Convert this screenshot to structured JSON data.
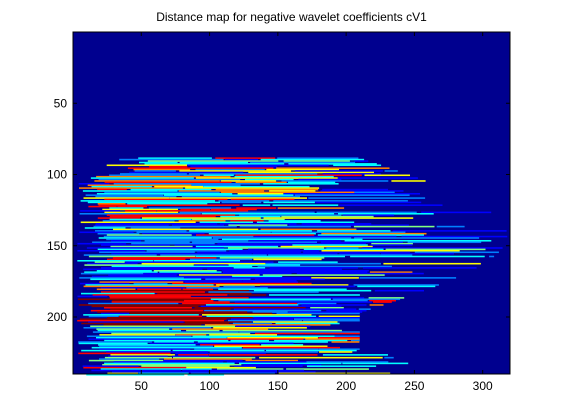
{
  "window": {
    "background": "#ffffff"
  },
  "chart_data": {
    "type": "heatmap",
    "title": "Distance map for negative wavelet coefficients cV1",
    "xlabel": "",
    "ylabel": "",
    "xlim": [
      0,
      320
    ],
    "ylim": [
      0,
      240
    ],
    "y_direction": "reversed",
    "x_ticks": [
      50,
      100,
      150,
      200,
      250,
      300
    ],
    "y_ticks": [
      50,
      100,
      150,
      200
    ],
    "grid": false,
    "colormap": "jet",
    "background_value_color": "#00008f",
    "colormap_stops": [
      "#00008f",
      "#0000ff",
      "#0080ff",
      "#00ffff",
      "#80ff80",
      "#ffff00",
      "#ff8000",
      "#ff0000",
      "#800000"
    ],
    "content_extent": {
      "rows": [
        88,
        240
      ],
      "cols_start_range": [
        3,
        30
      ],
      "cols_end_range": [
        210,
        318
      ]
    },
    "regions": [
      {
        "rows": [
          100,
          130
        ],
        "cols": [
          20,
          170
        ],
        "level": "mixed-warm"
      },
      {
        "rows": [
          180,
          205
        ],
        "cols": [
          50,
          130
        ],
        "level": "high"
      },
      {
        "rows": [
          190,
          198
        ],
        "cols": [
          240,
          280
        ],
        "level": "high-orange"
      },
      {
        "rows": [
          210,
          230
        ],
        "cols": [
          130,
          240
        ],
        "level": "mixed-warm"
      }
    ]
  }
}
